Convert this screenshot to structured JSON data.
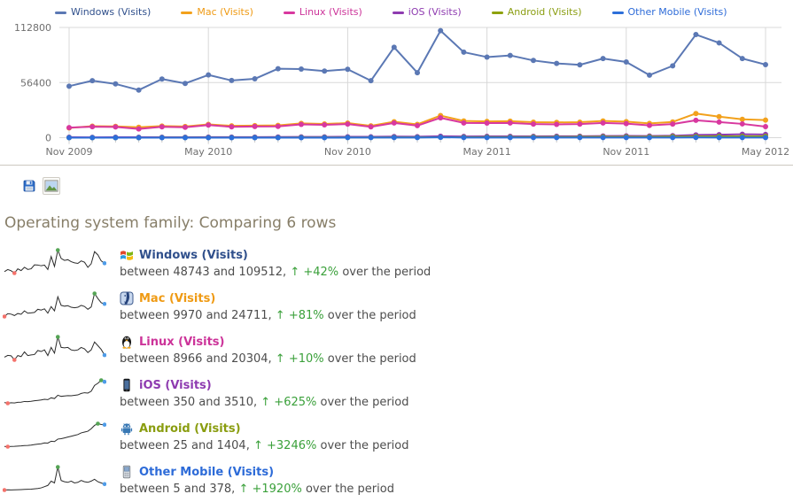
{
  "heading": "Operating system family: Comparing 6 rows",
  "legend_title": "chart legend",
  "export": {
    "icons": [
      "export-data-disk-icon",
      "export-as-image-icon"
    ]
  },
  "ui_colors": {
    "heading_text": "#877e68",
    "axis_text": "#6f6f6f",
    "gridline": "#d8d8d8",
    "tick": "#c8c8c8",
    "divider": "#ccc8c0",
    "positive_change": "#3aa03a",
    "sparkline_line": "#2b2b2b",
    "sparkline_min_marker": "#f4726b",
    "sparkline_max_marker": "#55a555",
    "sparkline_last_marker": "#4f9ce8"
  },
  "chart_data": {
    "type": "line",
    "title": "",
    "xlabel": "",
    "ylabel": "",
    "ylim": [
      0,
      112800
    ],
    "grid": true,
    "legend_position": "top",
    "y_ticks": [
      0,
      56400,
      112800
    ],
    "x_ticks": [
      {
        "index": 0,
        "label": "Nov 2009"
      },
      {
        "index": 6,
        "label": "May 2010"
      },
      {
        "index": 12,
        "label": "Nov 2010"
      },
      {
        "index": 18,
        "label": "May 2011"
      },
      {
        "index": 24,
        "label": "Nov 2011"
      },
      {
        "index": 30,
        "label": "May 2012"
      }
    ],
    "n_points": 31,
    "series": [
      {
        "name": "Windows (Visits)",
        "color": "#5b78b4",
        "label_color": "#30508c",
        "values": [
          52700,
          58300,
          55000,
          48743,
          60000,
          55500,
          64200,
          58500,
          60200,
          70600,
          70200,
          68200,
          70000,
          58300,
          92500,
          66500,
          109512,
          87500,
          82500,
          84200,
          79000,
          76000,
          74500,
          81000,
          77500,
          64000,
          73500,
          105500,
          97000,
          81000,
          74800
        ]
      },
      {
        "name": "Mac (Visits)",
        "color": "#f2a11c",
        "label_color": "#ef9a13",
        "values": [
          9970,
          11800,
          11500,
          10600,
          11900,
          11400,
          13600,
          12100,
          12300,
          12600,
          14600,
          14100,
          14900,
          12100,
          16300,
          13600,
          22600,
          17100,
          16600,
          16900,
          15900,
          15600,
          15900,
          17100,
          16400,
          14600,
          16100,
          24711,
          21500,
          18800,
          18046
        ]
      },
      {
        "name": "Linux (Visits)",
        "color": "#d8389f",
        "label_color": "#cc3399",
        "values": [
          10300,
          11200,
          11000,
          8966,
          11100,
          10600,
          12900,
          11100,
          11400,
          11600,
          13600,
          13100,
          13900,
          11100,
          15100,
          12300,
          20304,
          15100,
          14900,
          15100,
          13900,
          13600,
          13900,
          15100,
          14400,
          12600,
          13900,
          17800,
          16000,
          14100,
          11330
        ]
      },
      {
        "name": "iOS (Visits)",
        "color": "#8e3bb0",
        "label_color": "#8e3bb0",
        "values": [
          455,
          350,
          420,
          400,
          480,
          500,
          600,
          580,
          620,
          700,
          750,
          800,
          900,
          850,
          1100,
          1000,
          1450,
          1300,
          1350,
          1400,
          1380,
          1450,
          1500,
          1700,
          1800,
          1750,
          2000,
          2800,
          3100,
          3510,
          3300
        ]
      },
      {
        "name": "Android (Visits)",
        "color": "#8ea20c",
        "label_color": "#8a9d10",
        "values": [
          40,
          25,
          35,
          45,
          60,
          70,
          90,
          100,
          120,
          150,
          180,
          200,
          250,
          240,
          350,
          330,
          480,
          500,
          550,
          600,
          650,
          700,
          750,
          850,
          900,
          950,
          1100,
          1300,
          1404,
          1350,
          1339
        ]
      },
      {
        "name": "Other Mobile (Visits)",
        "color": "#2d6fd9",
        "label_color": "#2d6bd8",
        "values": [
          5,
          8,
          7,
          9,
          10,
          12,
          15,
          18,
          20,
          25,
          30,
          40,
          60,
          80,
          150,
          120,
          378,
          160,
          140,
          130,
          150,
          120,
          130,
          160,
          140,
          130,
          150,
          180,
          140,
          120,
          101
        ]
      }
    ]
  },
  "rows": [
    {
      "label": "Windows (Visits)",
      "range_text": "between 48743 and 109512,",
      "change_text": "+42%",
      "suffix_text": "over the period"
    },
    {
      "label": "Mac (Visits)",
      "range_text": "between 9970 and 24711,",
      "change_text": "+81%",
      "suffix_text": "over the period"
    },
    {
      "label": "Linux (Visits)",
      "range_text": "between 8966 and 20304,",
      "change_text": "+10%",
      "suffix_text": "over the period"
    },
    {
      "label": "iOS (Visits)",
      "range_text": "between 350 and 3510,",
      "change_text": "+625%",
      "suffix_text": "over the period"
    },
    {
      "label": "Android (Visits)",
      "range_text": "between 25 and 1404,",
      "change_text": "+3246%",
      "suffix_text": "over the period"
    },
    {
      "label": "Other Mobile (Visits)",
      "range_text": "between 5 and 378,",
      "change_text": "+1920%",
      "suffix_text": "over the period"
    }
  ]
}
